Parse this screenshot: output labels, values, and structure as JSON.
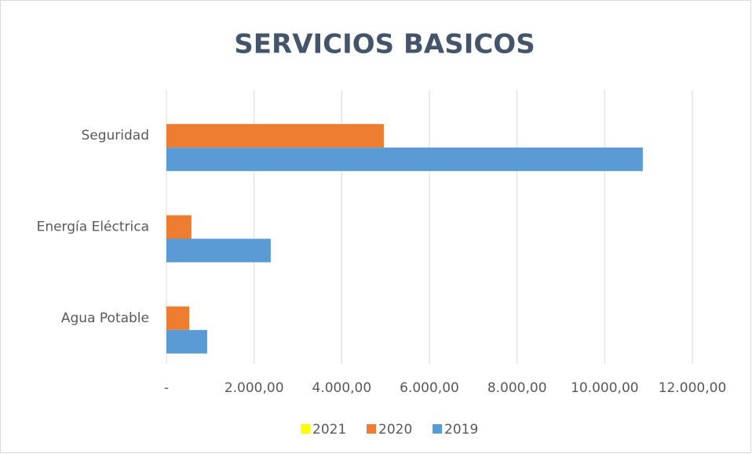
{
  "chart_data": {
    "type": "hbar",
    "title": "SERVICIOS BASICOS",
    "categories": [
      "Seguridad",
      "Energía Eléctrica",
      "Agua Potable"
    ],
    "series": [
      {
        "name": "2021",
        "color": "#ffff00",
        "values": [
          0,
          0,
          0
        ]
      },
      {
        "name": "2020",
        "color": "#ed7d31",
        "values": [
          4960,
          570,
          520
        ]
      },
      {
        "name": "2019",
        "color": "#5b9bd5",
        "values": [
          10870,
          2380,
          930
        ]
      }
    ],
    "xlim": [
      0,
      12000
    ],
    "xticks": [
      {
        "value": 0,
        "label": "-"
      },
      {
        "value": 2000,
        "label": "2.000,00"
      },
      {
        "value": 4000,
        "label": "4.000,00"
      },
      {
        "value": 6000,
        "label": "6.000,00"
      },
      {
        "value": 8000,
        "label": "8.000,00"
      },
      {
        "value": 10000,
        "label": "10.000,00"
      },
      {
        "value": 12000,
        "label": "12.000,00"
      }
    ],
    "grid": true,
    "legend": "bottom"
  }
}
